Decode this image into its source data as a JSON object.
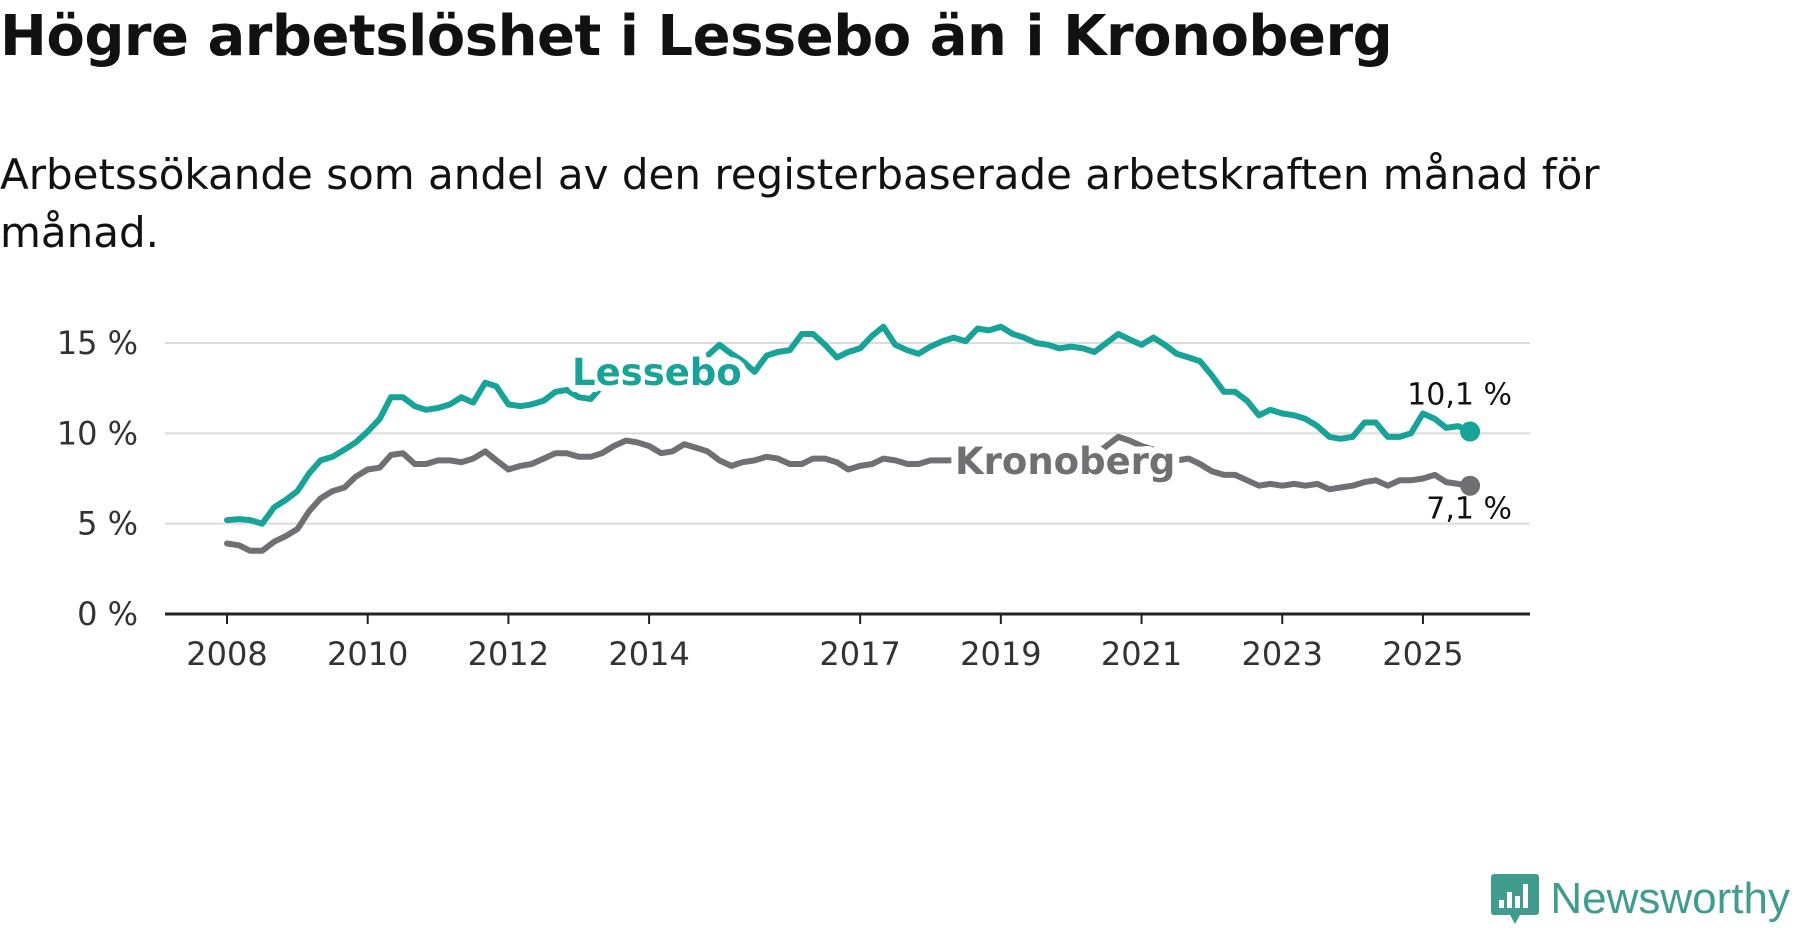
{
  "title": "Högre arbetslöshet i Lessebo än i Kronoberg",
  "subtitle": "Arbetssökande som andel av den registerbaserade arbetskraften månad för månad.",
  "logo_text": "Newsworthy",
  "colors": {
    "lessebo": "#17a398",
    "kronoberg": "#707074",
    "grid": "#dcdcdc",
    "axis": "#222222"
  },
  "chart_data": {
    "type": "line",
    "title": "Högre arbetslöshet i Lessebo än i Kronoberg",
    "xlabel": "",
    "ylabel": "",
    "xlim": [
      2008,
      2025.67
    ],
    "ylim": [
      0,
      15
    ],
    "grid": true,
    "y_ticks": [
      0,
      5,
      10,
      15
    ],
    "y_tick_labels": [
      "0 %",
      "5 %",
      "10 %",
      "15 %"
    ],
    "x_ticks": [
      2008,
      2010,
      2012,
      2014,
      2017,
      2019,
      2021,
      2023,
      2025
    ],
    "x_tick_labels": [
      "2008",
      "2010",
      "2012",
      "2014",
      "2017",
      "2019",
      "2021",
      "2023",
      "2025"
    ],
    "series": [
      {
        "name": "Lessebo",
        "end_label": "10,1 %",
        "points": [
          [
            2008.0,
            5.2
          ],
          [
            2008.17,
            5.25
          ],
          [
            2008.33,
            5.2
          ],
          [
            2008.5,
            5.0
          ],
          [
            2008.67,
            5.9
          ],
          [
            2008.83,
            6.3
          ],
          [
            2009.0,
            6.8
          ],
          [
            2009.17,
            7.8
          ],
          [
            2009.33,
            8.5
          ],
          [
            2009.5,
            8.7
          ],
          [
            2009.67,
            9.1
          ],
          [
            2009.83,
            9.5
          ],
          [
            2010.0,
            10.1
          ],
          [
            2010.17,
            10.8
          ],
          [
            2010.33,
            12.0
          ],
          [
            2010.5,
            12.0
          ],
          [
            2010.67,
            11.5
          ],
          [
            2010.83,
            11.3
          ],
          [
            2011.0,
            11.4
          ],
          [
            2011.17,
            11.6
          ],
          [
            2011.33,
            12.0
          ],
          [
            2011.5,
            11.7
          ],
          [
            2011.67,
            12.8
          ],
          [
            2011.83,
            12.6
          ],
          [
            2012.0,
            11.6
          ],
          [
            2012.17,
            11.5
          ],
          [
            2012.33,
            11.6
          ],
          [
            2012.5,
            11.8
          ],
          [
            2012.67,
            12.3
          ],
          [
            2012.83,
            12.4
          ],
          [
            2013.0,
            12.0
          ],
          [
            2013.17,
            11.9
          ],
          [
            2013.33,
            12.6
          ],
          [
            2013.5,
            13.0
          ],
          [
            2013.67,
            13.3
          ],
          [
            2013.83,
            13.6
          ],
          [
            2014.0,
            13.8
          ],
          [
            2014.17,
            13.9
          ],
          [
            2014.33,
            13.8
          ],
          [
            2014.5,
            13.9
          ],
          [
            2014.67,
            14.2
          ],
          [
            2014.83,
            14.3
          ],
          [
            2015.0,
            14.9
          ],
          [
            2015.17,
            14.4
          ],
          [
            2015.33,
            14.0
          ],
          [
            2015.5,
            13.4
          ],
          [
            2015.67,
            14.3
          ],
          [
            2015.83,
            14.5
          ],
          [
            2016.0,
            14.6
          ],
          [
            2016.17,
            15.5
          ],
          [
            2016.33,
            15.5
          ],
          [
            2016.5,
            14.9
          ],
          [
            2016.67,
            14.2
          ],
          [
            2016.83,
            14.5
          ],
          [
            2017.0,
            14.7
          ],
          [
            2017.17,
            15.4
          ],
          [
            2017.33,
            15.9
          ],
          [
            2017.5,
            14.9
          ],
          [
            2017.67,
            14.6
          ],
          [
            2017.83,
            14.4
          ],
          [
            2018.0,
            14.8
          ],
          [
            2018.17,
            15.1
          ],
          [
            2018.33,
            15.3
          ],
          [
            2018.5,
            15.1
          ],
          [
            2018.67,
            15.8
          ],
          [
            2018.83,
            15.7
          ],
          [
            2019.0,
            15.9
          ],
          [
            2019.17,
            15.5
          ],
          [
            2019.33,
            15.3
          ],
          [
            2019.5,
            15.0
          ],
          [
            2019.67,
            14.9
          ],
          [
            2019.83,
            14.7
          ],
          [
            2020.0,
            14.8
          ],
          [
            2020.17,
            14.7
          ],
          [
            2020.33,
            14.5
          ],
          [
            2020.5,
            15.0
          ],
          [
            2020.67,
            15.5
          ],
          [
            2020.83,
            15.2
          ],
          [
            2021.0,
            14.9
          ],
          [
            2021.17,
            15.3
          ],
          [
            2021.33,
            14.9
          ],
          [
            2021.5,
            14.4
          ],
          [
            2021.67,
            14.2
          ],
          [
            2021.83,
            14.0
          ],
          [
            2022.0,
            13.2
          ],
          [
            2022.17,
            12.3
          ],
          [
            2022.33,
            12.3
          ],
          [
            2022.5,
            11.8
          ],
          [
            2022.67,
            11.0
          ],
          [
            2022.83,
            11.3
          ],
          [
            2023.0,
            11.1
          ],
          [
            2023.17,
            11.0
          ],
          [
            2023.33,
            10.8
          ],
          [
            2023.5,
            10.4
          ],
          [
            2023.67,
            9.8
          ],
          [
            2023.83,
            9.7
          ],
          [
            2024.0,
            9.8
          ],
          [
            2024.17,
            10.6
          ],
          [
            2024.33,
            10.6
          ],
          [
            2024.5,
            9.8
          ],
          [
            2024.67,
            9.8
          ],
          [
            2024.83,
            10.0
          ],
          [
            2025.0,
            11.1
          ],
          [
            2025.17,
            10.8
          ],
          [
            2025.33,
            10.3
          ],
          [
            2025.5,
            10.4
          ],
          [
            2025.67,
            10.1
          ]
        ]
      },
      {
        "name": "Kronoberg",
        "end_label": "7,1 %",
        "points": [
          [
            2008.0,
            3.9
          ],
          [
            2008.17,
            3.8
          ],
          [
            2008.33,
            3.5
          ],
          [
            2008.5,
            3.5
          ],
          [
            2008.67,
            4.0
          ],
          [
            2008.83,
            4.3
          ],
          [
            2009.0,
            4.7
          ],
          [
            2009.17,
            5.7
          ],
          [
            2009.33,
            6.4
          ],
          [
            2009.5,
            6.8
          ],
          [
            2009.67,
            7.0
          ],
          [
            2009.83,
            7.6
          ],
          [
            2010.0,
            8.0
          ],
          [
            2010.17,
            8.1
          ],
          [
            2010.33,
            8.8
          ],
          [
            2010.5,
            8.9
          ],
          [
            2010.67,
            8.3
          ],
          [
            2010.83,
            8.3
          ],
          [
            2011.0,
            8.5
          ],
          [
            2011.17,
            8.5
          ],
          [
            2011.33,
            8.4
          ],
          [
            2011.5,
            8.6
          ],
          [
            2011.67,
            9.0
          ],
          [
            2011.83,
            8.5
          ],
          [
            2012.0,
            8.0
          ],
          [
            2012.17,
            8.2
          ],
          [
            2012.33,
            8.3
          ],
          [
            2012.5,
            8.6
          ],
          [
            2012.67,
            8.9
          ],
          [
            2012.83,
            8.9
          ],
          [
            2013.0,
            8.7
          ],
          [
            2013.17,
            8.7
          ],
          [
            2013.33,
            8.9
          ],
          [
            2013.5,
            9.3
          ],
          [
            2013.67,
            9.6
          ],
          [
            2013.83,
            9.5
          ],
          [
            2014.0,
            9.3
          ],
          [
            2014.17,
            8.9
          ],
          [
            2014.33,
            9.0
          ],
          [
            2014.5,
            9.4
          ],
          [
            2014.67,
            9.2
          ],
          [
            2014.83,
            9.0
          ],
          [
            2015.0,
            8.5
          ],
          [
            2015.17,
            8.2
          ],
          [
            2015.33,
            8.4
          ],
          [
            2015.5,
            8.5
          ],
          [
            2015.67,
            8.7
          ],
          [
            2015.83,
            8.6
          ],
          [
            2016.0,
            8.3
          ],
          [
            2016.17,
            8.3
          ],
          [
            2016.33,
            8.6
          ],
          [
            2016.5,
            8.6
          ],
          [
            2016.67,
            8.4
          ],
          [
            2016.83,
            8.0
          ],
          [
            2017.0,
            8.2
          ],
          [
            2017.17,
            8.3
          ],
          [
            2017.33,
            8.6
          ],
          [
            2017.5,
            8.5
          ],
          [
            2017.67,
            8.3
          ],
          [
            2017.83,
            8.3
          ],
          [
            2018.0,
            8.5
          ],
          [
            2018.17,
            8.5
          ],
          [
            2018.33,
            8.5
          ],
          [
            2018.5,
            8.2
          ],
          [
            2018.67,
            8.1
          ],
          [
            2018.83,
            8.3
          ],
          [
            2019.0,
            8.5
          ],
          [
            2019.17,
            8.7
          ],
          [
            2019.33,
            8.8
          ],
          [
            2019.5,
            8.9
          ],
          [
            2019.67,
            8.8
          ],
          [
            2019.83,
            8.7
          ],
          [
            2020.0,
            8.8
          ],
          [
            2020.17,
            8.6
          ],
          [
            2020.33,
            8.8
          ],
          [
            2020.5,
            9.3
          ],
          [
            2020.67,
            9.8
          ],
          [
            2020.83,
            9.6
          ],
          [
            2021.0,
            9.3
          ],
          [
            2021.17,
            9.1
          ],
          [
            2021.33,
            8.8
          ],
          [
            2021.5,
            8.5
          ],
          [
            2021.67,
            8.6
          ],
          [
            2021.83,
            8.3
          ],
          [
            2022.0,
            7.9
          ],
          [
            2022.17,
            7.7
          ],
          [
            2022.33,
            7.7
          ],
          [
            2022.5,
            7.4
          ],
          [
            2022.67,
            7.1
          ],
          [
            2022.83,
            7.2
          ],
          [
            2023.0,
            7.1
          ],
          [
            2023.17,
            7.2
          ],
          [
            2023.33,
            7.1
          ],
          [
            2023.5,
            7.2
          ],
          [
            2023.67,
            6.9
          ],
          [
            2023.83,
            7.0
          ],
          [
            2024.0,
            7.1
          ],
          [
            2024.17,
            7.3
          ],
          [
            2024.33,
            7.4
          ],
          [
            2024.5,
            7.1
          ],
          [
            2024.67,
            7.4
          ],
          [
            2024.83,
            7.4
          ],
          [
            2025.0,
            7.5
          ],
          [
            2025.17,
            7.7
          ],
          [
            2025.33,
            7.3
          ],
          [
            2025.5,
            7.2
          ],
          [
            2025.67,
            7.1
          ]
        ]
      }
    ]
  }
}
